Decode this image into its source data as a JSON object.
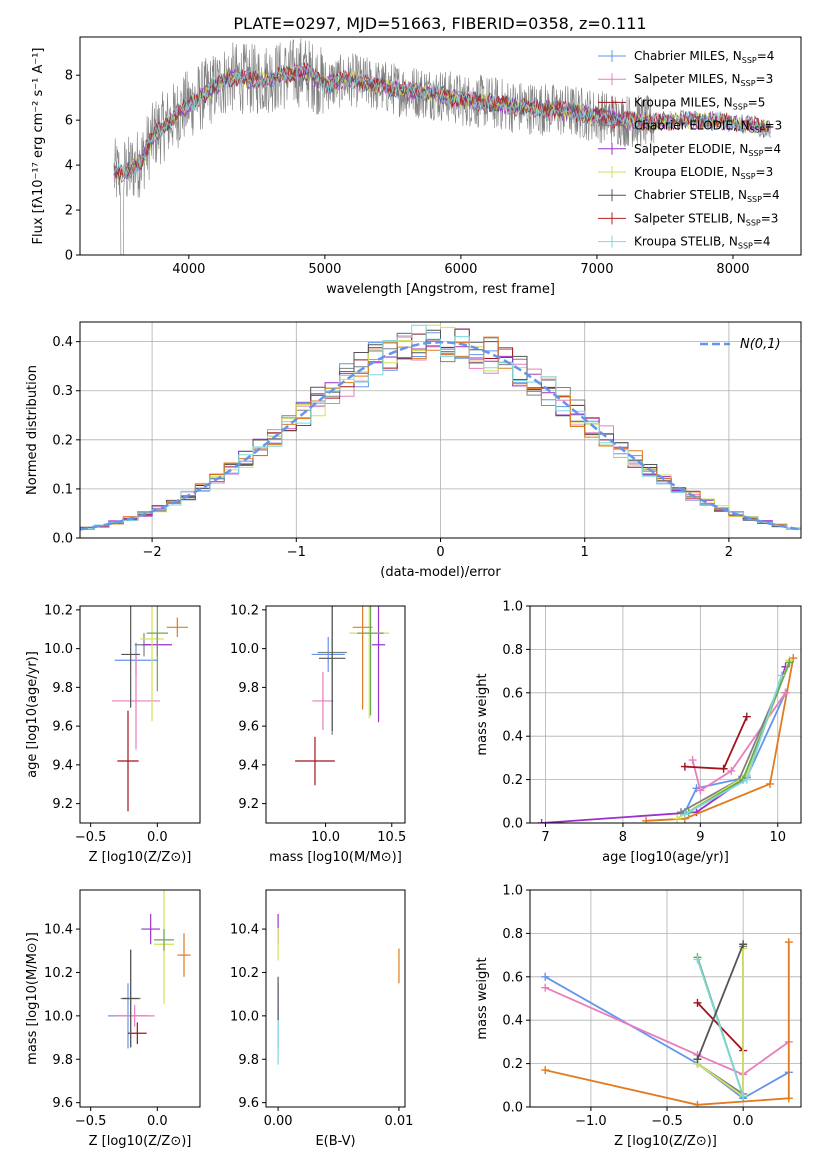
{
  "figure_title": "PLATE=0297, MJD=51663, FIBERID=0358, z=0.111",
  "colors": {
    "blue": "#6495ed",
    "pink": "#e87dbf",
    "red": "#a0141e",
    "gray": "#808080",
    "purple": "#9932cc",
    "yellow": "#d4e157",
    "dark": "#555555",
    "crimson": "#b22222",
    "cyan": "#7fd7dd",
    "orange": "#e07b1f",
    "green": "#6aa84f",
    "normal": "#6495ed"
  },
  "chart_data": [
    {
      "id": "spectrum",
      "type": "line",
      "xlabel": "wavelength [Angstrom, rest frame]",
      "ylabel": "Flux [fλ10⁻¹⁷ erg cm⁻² s⁻¹ A⁻¹]",
      "xlim": [
        3200,
        8500
      ],
      "ylim": [
        0,
        9.7
      ],
      "xticks": [
        4000,
        5000,
        6000,
        7000,
        8000
      ],
      "yticks": [
        0,
        2,
        4,
        6,
        8
      ],
      "grid": false,
      "legend_loc": "right",
      "legend": [
        "Chabrier MILES, N_SSP=4",
        "Salpeter MILES, N_SSP=3",
        "Kroupa MILES, N_SSP=5",
        "Chabrier ELODIE, N_SSP=3",
        "Salpeter ELODIE, N_SSP=4",
        "Kroupa ELODIE, N_SSP=3",
        "Chabrier STELIB, N_SSP=4",
        "Salpeter STELIB, N_SSP=3",
        "Kroupa STELIB, N_SSP=4"
      ],
      "legend_display": [
        {
          "pre": "Chabrier MILES, N",
          "sub": "SSP",
          "post": "=4",
          "color": "#6495ed"
        },
        {
          "pre": "Salpeter MILES, N",
          "sub": "SSP",
          "post": "=3",
          "color": "#e87dbf"
        },
        {
          "pre": "Kroupa MILES, N",
          "sub": "SSP",
          "post": "=5",
          "color": "#a0141e"
        },
        {
          "pre": "Chabrier ELODIE, N",
          "sub": "SSP",
          "post": "=3",
          "color": "#808080"
        },
        {
          "pre": "Salpeter ELODIE, N",
          "sub": "SSP",
          "post": "=4",
          "color": "#9932cc"
        },
        {
          "pre": "Kroupa ELODIE, N",
          "sub": "SSP",
          "post": "=3",
          "color": "#d4e157"
        },
        {
          "pre": "Chabrier STELIB, N",
          "sub": "SSP",
          "post": "=4",
          "color": "#555555"
        },
        {
          "pre": "Salpeter STELIB, N",
          "sub": "SSP",
          "post": "=3",
          "color": "#b22222"
        },
        {
          "pre": "Kroupa STELIB, N",
          "sub": "SSP",
          "post": "=4",
          "color": "#7fd7dd"
        }
      ],
      "data_series_color": "#808080",
      "model_continuum": [
        [
          3450,
          3.6
        ],
        [
          3550,
          3.7
        ],
        [
          3650,
          4.2
        ],
        [
          3750,
          5.4
        ],
        [
          3850,
          5.9
        ],
        [
          3950,
          6.5
        ],
        [
          4100,
          7.1
        ],
        [
          4300,
          7.9
        ],
        [
          4500,
          7.8
        ],
        [
          4700,
          8.0
        ],
        [
          4850,
          8.2
        ],
        [
          5000,
          7.6
        ],
        [
          5200,
          7.8
        ],
        [
          5400,
          7.5
        ],
        [
          5600,
          7.3
        ],
        [
          5800,
          7.2
        ],
        [
          6000,
          6.9
        ],
        [
          6200,
          6.8
        ],
        [
          6400,
          6.6
        ],
        [
          6600,
          6.5
        ],
        [
          6800,
          6.4
        ],
        [
          7000,
          6.2
        ],
        [
          7200,
          6.0
        ],
        [
          7400,
          5.9
        ],
        [
          7600,
          6.0
        ],
        [
          7800,
          6.0
        ],
        [
          8000,
          5.9
        ],
        [
          8200,
          5.7
        ],
        [
          8280,
          5.6
        ]
      ]
    },
    {
      "id": "residual-hist",
      "type": "bar",
      "xlabel": "(data-model)/error",
      "ylabel": "Normed distribution",
      "xlim": [
        -2.5,
        2.5
      ],
      "ylim": [
        0,
        0.44
      ],
      "xticks": [
        -2,
        -1,
        0,
        1,
        2
      ],
      "xtick_labels": [
        "−2",
        "−1",
        "0",
        "1",
        "2"
      ],
      "yticks": [
        0,
        0.1,
        0.2,
        0.3,
        0.4
      ],
      "ytick_labels": [
        "0.0",
        "0.1",
        "0.2",
        "0.3",
        "0.4"
      ],
      "grid": true,
      "legend_loc": "top-right",
      "legend": [
        "N(0,1)"
      ],
      "bin_width": 0.1,
      "bin_start": -2.5,
      "series_colors": [
        "#6495ed",
        "#e87dbf",
        "#a0141e",
        "#808080",
        "#9932cc",
        "#d4e157",
        "#555555",
        "#e07b1f",
        "#7fd7dd"
      ]
    },
    {
      "id": "Z-age",
      "type": "scatter",
      "xlabel": "Z [log10(Z/Z⊙)]",
      "ylabel": "age [log10(age/yr)]",
      "xlim": [
        -0.58,
        0.32
      ],
      "ylim": [
        9.1,
        10.22
      ],
      "xticks": [
        -0.5,
        0
      ],
      "xtick_labels": [
        "−0.5",
        "0.0"
      ],
      "yticks": [
        9.2,
        9.4,
        9.6,
        9.8,
        10.0,
        10.2
      ],
      "ytick_labels": [
        "9.2",
        "9.4",
        "9.6",
        "9.8",
        "10.0",
        "10.2"
      ],
      "points": [
        {
          "x": -0.16,
          "xerr": 0.32,
          "y": 9.94,
          "yerr": 0.18,
          "color": "#6495ed"
        },
        {
          "x": -0.16,
          "xerr": 0.36,
          "y": 9.73,
          "yerr": 0.5,
          "color": "#e87dbf"
        },
        {
          "x": -0.22,
          "xerr": 0.16,
          "y": 9.42,
          "yerr": 0.52,
          "color": "#a0141e"
        },
        {
          "x": -0.1,
          "xerr": 0.14,
          "y": 10.02,
          "yerr": 0.12,
          "color": "#808080"
        },
        {
          "x": 0.0,
          "xerr": 0.22,
          "y": 10.02,
          "yerr": 0.12,
          "color": "#9932cc"
        },
        {
          "x": -0.04,
          "xerr": 0.18,
          "y": 10.05,
          "yerr": 0.85,
          "color": "#d4e157"
        },
        {
          "x": -0.2,
          "xerr": 0.14,
          "y": 9.97,
          "yerr": 0.55,
          "color": "#555555"
        },
        {
          "x": 0.15,
          "xerr": 0.16,
          "y": 10.11,
          "yerr": 0.1,
          "color": "#e07b1f"
        },
        {
          "x": 0.0,
          "xerr": 0.16,
          "y": 10.08,
          "yerr": 0.6,
          "color": "#6aa84f"
        }
      ]
    },
    {
      "id": "mass-age",
      "type": "scatter",
      "xlabel": "mass [log10(M/M⊙)]",
      "ylabel": "",
      "xlim": [
        9.55,
        10.6
      ],
      "ylim": [
        9.1,
        10.22
      ],
      "xticks": [
        10.0,
        10.5
      ],
      "xtick_labels": [
        "10.0",
        "10.5"
      ],
      "yticks": [
        9.2,
        9.4,
        9.6,
        9.8,
        10.0,
        10.2
      ],
      "ytick_labels": [
        "9.2",
        "9.4",
        "9.6",
        "9.8",
        "10.0",
        "10.2"
      ],
      "points": [
        {
          "x": 10.02,
          "xerr": 0.25,
          "y": 9.97,
          "yerr": 0.18,
          "color": "#6495ed"
        },
        {
          "x": 9.98,
          "xerr": 0.16,
          "y": 9.73,
          "yerr": 0.3,
          "color": "#e87dbf"
        },
        {
          "x": 9.92,
          "xerr": 0.3,
          "y": 9.42,
          "yerr": 0.25,
          "color": "#a0141e"
        },
        {
          "x": 10.05,
          "xerr": 0.22,
          "y": 9.98,
          "yerr": 0.85,
          "color": "#808080"
        },
        {
          "x": 10.4,
          "xerr": 0.1,
          "y": 10.02,
          "yerr": 0.8,
          "color": "#9932cc"
        },
        {
          "x": 10.33,
          "xerr": 0.3,
          "y": 10.08,
          "yerr": 0.88,
          "color": "#d4e157"
        },
        {
          "x": 10.05,
          "xerr": 0.2,
          "y": 9.95,
          "yerr": 0.75,
          "color": "#555555"
        },
        {
          "x": 10.28,
          "xerr": 0.15,
          "y": 10.11,
          "yerr": 0.85,
          "color": "#e07b1f"
        },
        {
          "x": 10.34,
          "xerr": 0.2,
          "y": 10.08,
          "yerr": 0.85,
          "color": "#6aa84f"
        }
      ]
    },
    {
      "id": "age-weight",
      "type": "line",
      "xlabel": "age [log10(age/yr)]",
      "ylabel": "mass weight",
      "xlim": [
        6.8,
        10.3
      ],
      "ylim": [
        0,
        1
      ],
      "xticks": [
        7,
        8,
        9,
        10
      ],
      "xtick_labels": [
        "7",
        "8",
        "9",
        "10"
      ],
      "yticks": [
        0,
        0.2,
        0.4,
        0.6,
        0.8,
        1.0
      ],
      "ytick_labels": [
        "0.0",
        "0.2",
        "0.4",
        "0.6",
        "0.8",
        "1.0"
      ],
      "grid": true,
      "series": [
        {
          "color": "#9932cc",
          "points": [
            [
              6.95,
              0.0
            ],
            [
              8.95,
              0.05
            ],
            [
              9.6,
              0.21
            ],
            [
              10.1,
              0.72
            ]
          ]
        },
        {
          "color": "#e07b1f",
          "points": [
            [
              8.3,
              0.01
            ],
            [
              8.8,
              0.02
            ],
            [
              9.9,
              0.18
            ],
            [
              10.2,
              0.76
            ]
          ]
        },
        {
          "color": "#6495ed",
          "points": [
            [
              8.8,
              0.05
            ],
            [
              8.95,
              0.16
            ],
            [
              9.6,
              0.21
            ],
            [
              10.1,
              0.6
            ]
          ]
        },
        {
          "color": "#e87dbf",
          "points": [
            [
              8.9,
              0.29
            ],
            [
              9.0,
              0.15
            ],
            [
              9.4,
              0.24
            ],
            [
              10.1,
              0.6
            ]
          ]
        },
        {
          "color": "#a0141e",
          "points": [
            [
              8.8,
              0.26
            ],
            [
              9.3,
              0.25
            ],
            [
              9.6,
              0.49
            ]
          ]
        },
        {
          "color": "#808080",
          "points": [
            [
              8.75,
              0.05
            ],
            [
              9.5,
              0.2
            ],
            [
              10.15,
              0.74
            ]
          ]
        },
        {
          "color": "#d4e157",
          "points": [
            [
              8.7,
              0.02
            ],
            [
              9.6,
              0.22
            ],
            [
              10.15,
              0.75
            ]
          ]
        },
        {
          "color": "#6aa84f",
          "points": [
            [
              8.85,
              0.05
            ],
            [
              9.55,
              0.2
            ],
            [
              10.15,
              0.74
            ]
          ]
        },
        {
          "color": "#7fd7dd",
          "points": [
            [
              8.8,
              0.04
            ],
            [
              9.6,
              0.2
            ],
            [
              10.05,
              0.68
            ]
          ]
        }
      ]
    },
    {
      "id": "Z-mass",
      "type": "scatter",
      "xlabel": "Z [log10(Z/Z⊙)]",
      "ylabel": "mass [log10(M/M⊙)]",
      "xlim": [
        -0.58,
        0.32
      ],
      "ylim": [
        9.58,
        10.58
      ],
      "xticks": [
        -0.5,
        0
      ],
      "xtick_labels": [
        "−0.5",
        "0.0"
      ],
      "yticks": [
        9.6,
        9.8,
        10.0,
        10.2,
        10.4
      ],
      "ytick_labels": [
        "9.6",
        "9.8",
        "10.0",
        "10.2",
        "10.4"
      ],
      "points": [
        {
          "x": -0.22,
          "xerr": 0.3,
          "y": 10.0,
          "yerr": 0.3,
          "color": "#6495ed"
        },
        {
          "x": -0.17,
          "xerr": 0.3,
          "y": 10.0,
          "yerr": 0.1,
          "color": "#e87dbf"
        },
        {
          "x": -0.15,
          "xerr": 0.14,
          "y": 9.92,
          "yerr": 0.1,
          "color": "#a0141e"
        },
        {
          "x": -0.2,
          "xerr": 0.15,
          "y": 10.08,
          "yerr": 0.45,
          "color": "#808080"
        },
        {
          "x": -0.05,
          "xerr": 0.14,
          "y": 10.4,
          "yerr": 0.14,
          "color": "#9932cc"
        },
        {
          "x": 0.05,
          "xerr": 0.15,
          "y": 10.33,
          "yerr": 0.55,
          "color": "#d4e157"
        },
        {
          "x": -0.2,
          "xerr": 0.12,
          "y": 10.08,
          "yerr": 0.45,
          "color": "#555555"
        },
        {
          "x": 0.2,
          "xerr": 0.1,
          "y": 10.28,
          "yerr": 0.2,
          "color": "#e07b1f"
        },
        {
          "x": 0.05,
          "xerr": 0.15,
          "y": 10.35,
          "yerr": 0.1,
          "color": "#6aa84f"
        }
      ]
    },
    {
      "id": "EBV-mass",
      "type": "scatter",
      "xlabel": "E(B-V)",
      "ylabel": "",
      "xlim": [
        -0.001,
        0.0105
      ],
      "ylim": [
        9.58,
        10.58
      ],
      "xticks": [
        0.0,
        0.01
      ],
      "xtick_labels": [
        "0.00",
        "0.01"
      ],
      "yticks": [
        9.6,
        9.8,
        10.0,
        10.2,
        10.4
      ],
      "ytick_labels": [
        "9.6",
        "9.8",
        "10.0",
        "10.2",
        "10.4"
      ],
      "points": [
        {
          "x": 0.0,
          "xerr": 0.0,
          "y": 10.4,
          "yerr": 0.14,
          "color": "#9932cc"
        },
        {
          "x": 0.0,
          "xerr": 0.0,
          "y": 10.33,
          "yerr": 0.15,
          "color": "#d4e157"
        },
        {
          "x": 0.0,
          "xerr": 0.0,
          "y": 10.0,
          "yerr": 0.3,
          "color": "#6495ed"
        },
        {
          "x": 0.0,
          "xerr": 0.0,
          "y": 9.9,
          "yerr": 0.25,
          "color": "#7fd7dd"
        },
        {
          "x": 0.0,
          "xerr": 0.0,
          "y": 10.08,
          "yerr": 0.2,
          "color": "#555555"
        },
        {
          "x": 0.01,
          "xerr": 0.0,
          "y": 10.23,
          "yerr": 0.16,
          "color": "#e07b1f"
        }
      ]
    },
    {
      "id": "Z-weight",
      "type": "line",
      "xlabel": "Z [log10(Z/Z⊙)]",
      "ylabel": "mass weight",
      "xlim": [
        -1.4,
        0.38
      ],
      "ylim": [
        0,
        1
      ],
      "xticks": [
        -1.0,
        -0.5,
        0.0
      ],
      "xtick_labels": [
        "−1.0",
        "−0.5",
        "0.0"
      ],
      "yticks": [
        0,
        0.2,
        0.4,
        0.6,
        0.8,
        1.0
      ],
      "ytick_labels": [
        "0.0",
        "0.2",
        "0.4",
        "0.6",
        "0.8",
        "1.0"
      ],
      "grid": true,
      "series": [
        {
          "color": "#6495ed",
          "points": [
            [
              -1.3,
              0.6
            ],
            [
              -0.3,
              0.2
            ],
            [
              0.0,
              0.04
            ],
            [
              0.3,
              0.16
            ]
          ]
        },
        {
          "color": "#e87dbf",
          "points": [
            [
              -1.3,
              0.55
            ],
            [
              -0.3,
              0.24
            ],
            [
              0.0,
              0.15
            ],
            [
              0.3,
              0.3
            ]
          ]
        },
        {
          "color": "#e07b1f",
          "points": [
            [
              -1.3,
              0.17
            ],
            [
              -0.3,
              0.01
            ],
            [
              0.3,
              0.04
            ],
            [
              0.3,
              0.76
            ]
          ]
        },
        {
          "color": "#a0141e",
          "points": [
            [
              -0.3,
              0.48
            ],
            [
              0.0,
              0.26
            ]
          ]
        },
        {
          "color": "#808080",
          "points": [
            [
              -0.3,
              0.2
            ],
            [
              0.0,
              0.06
            ],
            [
              0.0,
              0.74
            ]
          ]
        },
        {
          "color": "#d4e157",
          "points": [
            [
              -0.3,
              0.2
            ],
            [
              0.0,
              0.05
            ],
            [
              0.0,
              0.73
            ]
          ]
        },
        {
          "color": "#6aa84f",
          "points": [
            [
              -0.3,
              0.69
            ],
            [
              0.0,
              0.05
            ]
          ]
        },
        {
          "color": "#7fd7dd",
          "points": [
            [
              -0.3,
              0.68
            ],
            [
              0.0,
              0.05
            ]
          ]
        },
        {
          "color": "#555555",
          "points": [
            [
              -0.3,
              0.22
            ],
            [
              0.0,
              0.75
            ]
          ]
        }
      ]
    }
  ]
}
